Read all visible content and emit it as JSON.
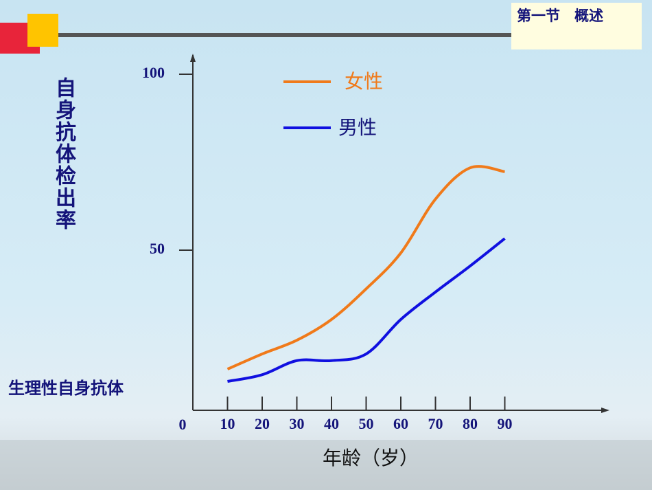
{
  "header": "第一节　概述",
  "chart_data": {
    "type": "line",
    "y_label": "自身抗体检出率",
    "x_label": "年龄（岁）",
    "annotation": "生理性自身抗体",
    "x": [
      10,
      20,
      30,
      40,
      50,
      60,
      70,
      80,
      90
    ],
    "series": [
      {
        "name": "女性",
        "color": "#f07a1a",
        "values": [
          16.2,
          20.5,
          24.4,
          30.3,
          39,
          49.2,
          64.5,
          73.4,
          72.3
        ]
      },
      {
        "name": "男性",
        "color": "#1010e0",
        "values": [
          12.7,
          14.6,
          18.6,
          18.6,
          20.5,
          30.3,
          38.1,
          45.5,
          53.3
        ]
      }
    ],
    "xlim": [
      0,
      120
    ],
    "xticks": [
      0,
      10,
      20,
      30,
      40,
      50,
      60,
      70,
      80,
      90
    ],
    "ylim": [
      0,
      100
    ],
    "yticks": [
      0,
      50,
      100
    ]
  }
}
